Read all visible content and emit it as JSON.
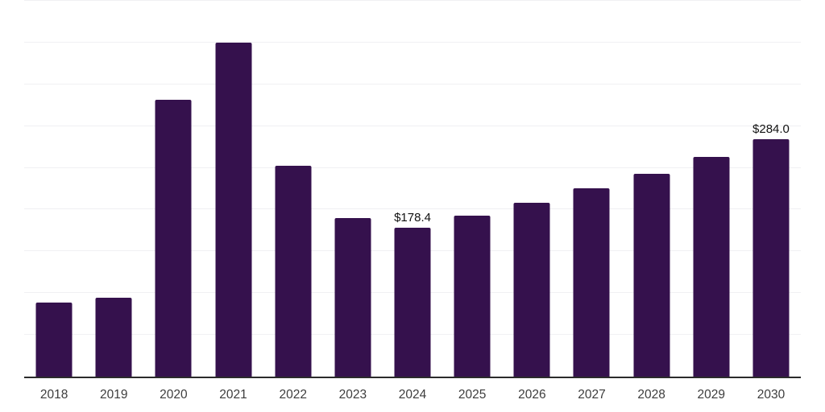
{
  "chart_data": {
    "type": "bar",
    "title": "",
    "xlabel": "",
    "ylabel": "",
    "categories": [
      "2018",
      "2019",
      "2020",
      "2021",
      "2022",
      "2023",
      "2024",
      "2025",
      "2026",
      "2027",
      "2028",
      "2029",
      "2030"
    ],
    "values": [
      89.0,
      94.5,
      331.5,
      400.0,
      252.0,
      190.0,
      178.4,
      192.8,
      208.3,
      225.1,
      243.3,
      262.9,
      284.0
    ],
    "annotations": [
      {
        "category": "2024",
        "text": "$178.4"
      },
      {
        "category": "2030",
        "text": "$284.0"
      }
    ],
    "ylim": [
      0,
      450
    ],
    "grid": {
      "visible": true,
      "step": 50,
      "orientation": "horizontal"
    },
    "legend": "none",
    "colors": {
      "bar": "#35114D",
      "gridline": "#f0f0f3",
      "axis_line": "#2b2b2b",
      "tick_label": "#3d3d3d",
      "annotation": "#111111",
      "background": "#ffffff"
    }
  }
}
